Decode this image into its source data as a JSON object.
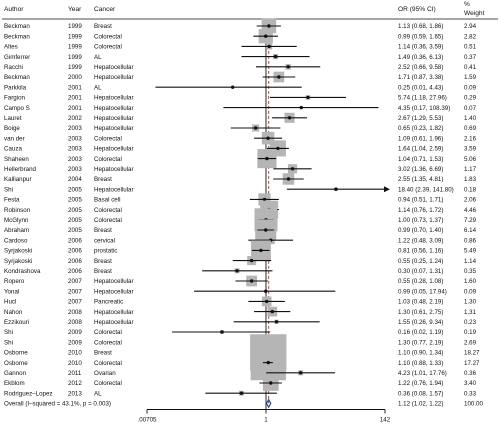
{
  "chart_data": {
    "type": "forest",
    "x_scale": "log",
    "xlim": [
      0.00705,
      142
    ],
    "xticks": [
      ".00705",
      "1",
      "142"
    ],
    "reference_line": 1,
    "headers": {
      "author": "Author",
      "year": "Year",
      "cancer": "Cancer",
      "or": "OR (95% CI)",
      "weight_line1": "%",
      "weight_line2": "Weight"
    },
    "studies": [
      {
        "author": "Beckman",
        "year": "1999",
        "cancer": "Breast",
        "or": 1.13,
        "lo": 0.68,
        "hi": 1.86,
        "or_text": "1.13 (0.68, 1.86)",
        "weight": 2.94,
        "weight_text": "2.94"
      },
      {
        "author": "Beckman",
        "year": "1999",
        "cancer": "Colorectal",
        "or": 0.99,
        "lo": 0.59,
        "hi": 1.65,
        "or_text": "0.99 (0.59, 1.65)",
        "weight": 2.82,
        "weight_text": "2.82"
      },
      {
        "author": "Altes",
        "year": "1999",
        "cancer": "Colorectal",
        "or": 1.14,
        "lo": 0.36,
        "hi": 3.59,
        "or_text": "1.14 (0.36, 3.59)",
        "weight": 0.51,
        "weight_text": "0.51"
      },
      {
        "author": "Gimferrer",
        "year": "1999",
        "cancer": "AL",
        "or": 1.49,
        "lo": 0.36,
        "hi": 6.13,
        "or_text": "1.49 (0.36, 6.13)",
        "weight": 0.37,
        "weight_text": "0.37"
      },
      {
        "author": "Racchi",
        "year": "1999",
        "cancer": "Hepatocellular",
        "or": 2.52,
        "lo": 0.66,
        "hi": 9.58,
        "or_text": "2.52 (0.66, 9.58)",
        "weight": 0.41,
        "weight_text": "0.41"
      },
      {
        "author": "Beckman",
        "year": "2000",
        "cancer": "Hepatocellular",
        "or": 1.71,
        "lo": 0.87,
        "hi": 3.38,
        "or_text": "1.71 (0.87, 3.38)",
        "weight": 1.59,
        "weight_text": "1.59"
      },
      {
        "author": "Parkkila",
        "year": "2001",
        "cancer": "AL",
        "or": 0.25,
        "lo": 0.01,
        "hi": 4.43,
        "or_text": "0.25 (0.01, 4.43)",
        "weight": 0.09,
        "weight_text": "0.09"
      },
      {
        "author": "Fargion",
        "year": "2001",
        "cancer": "Hepatocellular",
        "or": 5.74,
        "lo": 1.18,
        "hi": 27.96,
        "or_text": "5.74 (1.18, 27.96)",
        "weight": 0.29,
        "weight_text": "0.29"
      },
      {
        "author": "Campo S",
        "year": "2001",
        "cancer": "Hepatocellular",
        "or": 4.35,
        "lo": 0.17,
        "hi": 108.39,
        "or_text": "4.35 (0.17, 108.39)",
        "weight": 0.07,
        "weight_text": "0.07"
      },
      {
        "author": "Lauret",
        "year": "2002",
        "cancer": "Hepatocellular",
        "or": 2.67,
        "lo": 1.29,
        "hi": 5.53,
        "or_text": "2.67 (1.29, 5.53)",
        "weight": 1.4,
        "weight_text": "1.40"
      },
      {
        "author": "Boige",
        "year": "2003",
        "cancer": "Hepatocellular",
        "or": 0.65,
        "lo": 0.23,
        "hi": 1.82,
        "or_text": "0.65 (0.23, 1.82)",
        "weight": 0.69,
        "weight_text": "0.69"
      },
      {
        "author": "van der",
        "year": "2003",
        "cancer": "Colorectal",
        "or": 1.09,
        "lo": 0.61,
        "hi": 1.96,
        "or_text": "1.09 (0.61, 1.96)",
        "weight": 2.16,
        "weight_text": "2.16"
      },
      {
        "author": "Cauza",
        "year": "2003",
        "cancer": "Hepatocellular",
        "or": 1.64,
        "lo": 1.04,
        "hi": 2.59,
        "or_text": "1.64 (1.04, 2.59)",
        "weight": 3.59,
        "weight_text": "3.59"
      },
      {
        "author": "Shaheen",
        "year": "2003",
        "cancer": "Colorectal",
        "or": 1.04,
        "lo": 0.71,
        "hi": 1.53,
        "or_text": "1.04 (0.71, 1.53)",
        "weight": 5.06,
        "weight_text": "5.06"
      },
      {
        "author": "Hellerbrand",
        "year": "2003",
        "cancer": "Hepatocellular",
        "or": 3.02,
        "lo": 1.36,
        "hi": 6.69,
        "or_text": "3.02 (1.36, 6.69)",
        "weight": 1.17,
        "weight_text": "1.17"
      },
      {
        "author": "Kallianpur",
        "year": "2004",
        "cancer": "Breast",
        "or": 2.55,
        "lo": 1.35,
        "hi": 4.81,
        "or_text": "2.55 (1.35, 4.81)",
        "weight": 1.83,
        "weight_text": "1.83"
      },
      {
        "author": "Shi",
        "year": "2005",
        "cancer": "Hepatocellular",
        "or": 18.4,
        "lo": 2.39,
        "hi": 141.8,
        "or_text": "18.40 (2.39, 141.80)",
        "weight": 0.18,
        "weight_text": "0.18",
        "arrow": true
      },
      {
        "author": "Festa",
        "year": "2005",
        "cancer": "Basal cell",
        "or": 0.94,
        "lo": 0.51,
        "hi": 1.71,
        "or_text": "0.94 (0.51, 1.71)",
        "weight": 2.06,
        "weight_text": "2.06"
      },
      {
        "author": "Robinson",
        "year": "2005",
        "cancer": "Colorectal",
        "or": 1.14,
        "lo": 0.76,
        "hi": 1.72,
        "or_text": "1.14 (0.76, 1.72)",
        "weight": 4.46,
        "weight_text": "4.46"
      },
      {
        "author": "McGlynn",
        "year": "2005",
        "cancer": "Colorectal",
        "or": 1.0,
        "lo": 0.73,
        "hi": 1.37,
        "or_text": "1.00 (0.73, 1.37)",
        "weight": 7.29,
        "weight_text": "7.29"
      },
      {
        "author": "Abraham",
        "year": "2005",
        "cancer": "Breast",
        "or": 0.99,
        "lo": 0.7,
        "hi": 1.4,
        "or_text": "0.99 (0.70, 1.40)",
        "weight": 6.14,
        "weight_text": "6.14"
      },
      {
        "author": "Cardoso",
        "year": "2006",
        "cancer": "cervical",
        "or": 1.22,
        "lo": 0.48,
        "hi": 3.09,
        "or_text": "1.22 (0.48, 3.09)",
        "weight": 0.86,
        "weight_text": "0.86"
      },
      {
        "author": "Syrjakoski",
        "year": "2006",
        "cancer": "prostatic",
        "or": 0.81,
        "lo": 0.56,
        "hi": 1.16,
        "or_text": "0.81 (0.56, 1.16)",
        "weight": 5.49,
        "weight_text": "5.49"
      },
      {
        "author": "Syrjakoski",
        "year": "2006",
        "cancer": "Breast",
        "or": 0.55,
        "lo": 0.25,
        "hi": 1.24,
        "or_text": "0.55 (0.25, 1.24)",
        "weight": 1.14,
        "weight_text": "1.14"
      },
      {
        "author": "Kondrashova",
        "year": "2006",
        "cancer": "Breast",
        "or": 0.3,
        "lo": 0.07,
        "hi": 1.31,
        "or_text": "0.30 (0.07, 1.31)",
        "weight": 0.35,
        "weight_text": "0.35"
      },
      {
        "author": "Ropero",
        "year": "2007",
        "cancer": "Hepatocellular",
        "or": 0.55,
        "lo": 0.28,
        "hi": 1.08,
        "or_text": "0.55 (0.28, 1.08)",
        "weight": 1.6,
        "weight_text": "1.60"
      },
      {
        "author": "Yonal",
        "year": "2007",
        "cancer": "Hepatocellular",
        "or": 0.99,
        "lo": 0.05,
        "hi": 17.94,
        "or_text": "0.99 (0.05, 17.94)",
        "weight": 0.09,
        "weight_text": "0.09"
      },
      {
        "author": "Hucl",
        "year": "2007",
        "cancer": "Pancreatic",
        "or": 1.03,
        "lo": 0.48,
        "hi": 2.19,
        "or_text": "1.03 (0.48, 2.19)",
        "weight": 1.3,
        "weight_text": "1.30"
      },
      {
        "author": "Nahon",
        "year": "2008",
        "cancer": "Hepatocellular",
        "or": 1.3,
        "lo": 0.61,
        "hi": 2.75,
        "or_text": "1.30 (0.61, 2.75)",
        "weight": 1.31,
        "weight_text": "1.31"
      },
      {
        "author": "Ezzikouri",
        "year": "2008",
        "cancer": "Hepatocellular",
        "or": 1.55,
        "lo": 0.26,
        "hi": 9.34,
        "or_text": "1.55 (0.26, 9.34)",
        "weight": 0.23,
        "weight_text": "0.23"
      },
      {
        "author": "Shi",
        "year": "2009",
        "cancer": "Colorectal",
        "or": 0.16,
        "lo": 0.02,
        "hi": 1.19,
        "or_text": "0.16 (0.02, 1.19)",
        "weight": 0.19,
        "weight_text": "0.19"
      },
      {
        "author": "Shi",
        "year": "2009",
        "cancer": "Colorectal",
        "or": 1.3,
        "lo": 0.77,
        "hi": 2.19,
        "or_text": "1.30 (0.77, 2.19)",
        "weight": 2.69,
        "weight_text": "2.69"
      },
      {
        "author": "Osborne",
        "year": "2010",
        "cancer": "Breast",
        "or": 1.1,
        "lo": 0.9,
        "hi": 1.34,
        "or_text": "1.10 (0.90, 1.34)",
        "weight": 18.27,
        "weight_text": "18.27"
      },
      {
        "author": "Osborne",
        "year": "2010",
        "cancer": "Colorectal",
        "or": 1.1,
        "lo": 0.88,
        "hi": 1.33,
        "or_text": "1.10 (0.88, 1.33)",
        "weight": 17.27,
        "weight_text": "17.27"
      },
      {
        "author": "Gannon",
        "year": "2011",
        "cancer": "Ovarian",
        "or": 4.23,
        "lo": 1.01,
        "hi": 17.76,
        "or_text": "4.23 (1.01, 17.76)",
        "weight": 0.36,
        "weight_text": "0.36"
      },
      {
        "author": "Ekblom",
        "year": "2012",
        "cancer": "Colorectal",
        "or": 1.22,
        "lo": 0.76,
        "hi": 1.94,
        "or_text": "1.22 (0.76, 1.94)",
        "weight": 3.4,
        "weight_text": "3.40"
      },
      {
        "author": "Rodriguez–Lopez",
        "year": "2013",
        "cancer": "AL",
        "or": 0.36,
        "lo": 0.08,
        "hi": 1.57,
        "or_text": "0.36 (0.08, 1.57)",
        "weight": 0.33,
        "weight_text": "0.33"
      }
    ],
    "overall": {
      "label": "Overall  (I–squared = 43.1%, p = 0.003)",
      "or": 1.12,
      "lo": 1.02,
      "hi": 1.22,
      "or_text": "1.12 (1.02, 1.22)",
      "weight_text": "100.00"
    },
    "colors": {
      "box": "#b5b5b5",
      "point": "#111111",
      "ci_line": "#111111",
      "null_line": "#111111",
      "overall_line": "#b03030",
      "diamond": "#1f3f8f"
    }
  }
}
